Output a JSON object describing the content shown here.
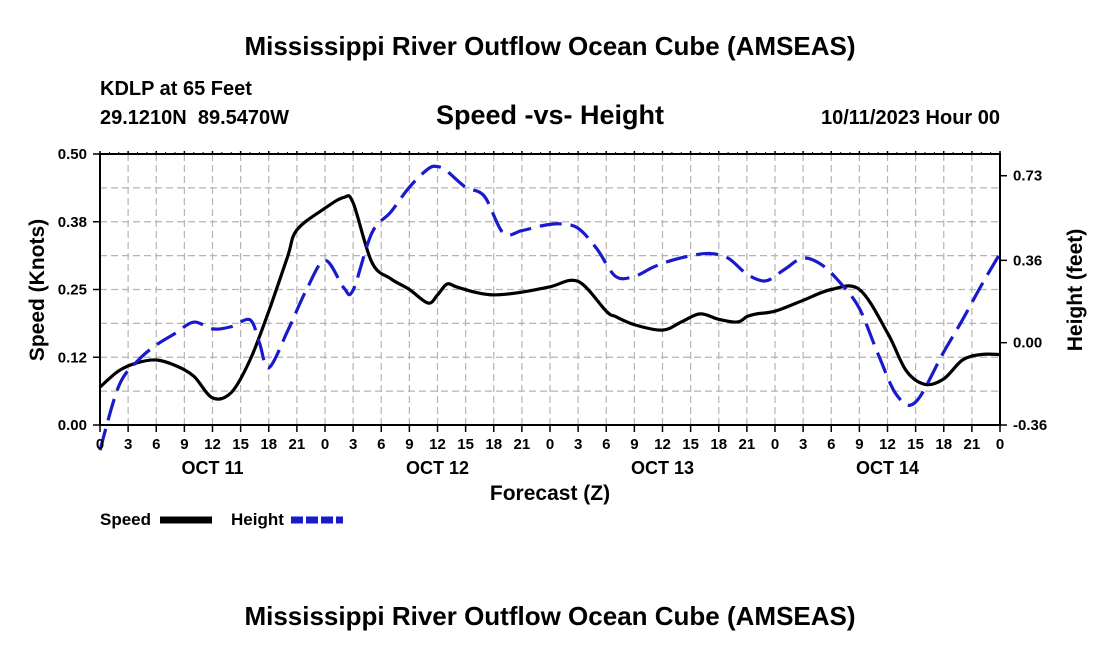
{
  "header": {
    "title": "Mississippi River Outflow Ocean Cube (AMSEAS)",
    "location_line": "KDLP at 65 Feet",
    "coordinates_line": "29.1210N  89.5470W",
    "subtitle": "Speed -vs- Height",
    "run_time": "10/11/2023 Hour 00",
    "footer_title": "Mississippi River Outflow Ocean Cube (AMSEAS)"
  },
  "chart_data": {
    "type": "line",
    "title": "Speed -vs- Height",
    "xlabel": "Forecast (Z)",
    "ylabel_left": "Speed (Knots)",
    "ylabel_right": "Height (feet)",
    "x_unit": "forecast hour",
    "xlim": [
      0,
      96
    ],
    "x_ticks": [
      0,
      3,
      6,
      9,
      12,
      15,
      18,
      21,
      24,
      27,
      30,
      33,
      36,
      39,
      42,
      45,
      48,
      51,
      54,
      57,
      60,
      63,
      66,
      69,
      72,
      75,
      78,
      81,
      84,
      87,
      90,
      93,
      96
    ],
    "x_tick_labels": [
      "0",
      "3",
      "6",
      "9",
      "12",
      "15",
      "18",
      "21",
      "0",
      "3",
      "6",
      "9",
      "12",
      "15",
      "18",
      "21",
      "0",
      "3",
      "6",
      "9",
      "12",
      "15",
      "18",
      "21",
      "0",
      "3",
      "6",
      "9",
      "12",
      "15",
      "18",
      "21",
      "0"
    ],
    "day_labels": [
      {
        "label": "OCT 11",
        "hour": 12
      },
      {
        "label": "OCT 12",
        "hour": 36
      },
      {
        "label": "OCT 13",
        "hour": 60
      },
      {
        "label": "OCT 14",
        "hour": 84
      }
    ],
    "left_axis": {
      "ylim": [
        0.0,
        0.5
      ],
      "ticks": [
        0.0,
        0.125,
        0.25,
        0.375,
        0.5
      ],
      "tick_labels": [
        "0.00",
        "0.12",
        "0.25",
        "0.38",
        "0.50"
      ]
    },
    "right_axis": {
      "ylim": [
        -0.36,
        0.825
      ],
      "ticks": [
        -0.36,
        0.0,
        0.36,
        0.73
      ],
      "tick_labels": [
        "-0.36",
        "0.00",
        "0.36",
        "0.73"
      ]
    },
    "grid": true,
    "legend": {
      "position": "bottom-left",
      "entries": [
        "Speed",
        "Height"
      ]
    },
    "series": [
      {
        "name": "Speed",
        "axis": "left",
        "color": "#000000",
        "style": "solid",
        "x": [
          0,
          2,
          4,
          6,
          8,
          10,
          12,
          14,
          16,
          18,
          20,
          21,
          24,
          26,
          27,
          29,
          31,
          33,
          35,
          36,
          37,
          38,
          40,
          42,
          45,
          48,
          51,
          54,
          55,
          57,
          60,
          62,
          64,
          66,
          68,
          69,
          70,
          72,
          75,
          78,
          81,
          84,
          86,
          88,
          90,
          92,
          94,
          96
        ],
        "y": [
          0.07,
          0.1,
          0.115,
          0.12,
          0.11,
          0.09,
          0.05,
          0.06,
          0.12,
          0.21,
          0.31,
          0.36,
          0.4,
          0.42,
          0.41,
          0.3,
          0.27,
          0.25,
          0.225,
          0.24,
          0.26,
          0.255,
          0.245,
          0.24,
          0.245,
          0.255,
          0.265,
          0.21,
          0.2,
          0.185,
          0.175,
          0.19,
          0.205,
          0.195,
          0.19,
          0.2,
          0.205,
          0.21,
          0.23,
          0.25,
          0.25,
          0.17,
          0.1,
          0.075,
          0.085,
          0.12,
          0.13,
          0.13
        ]
      },
      {
        "name": "Height",
        "axis": "right",
        "color": "#1a1acc",
        "style": "dashed",
        "x": [
          0,
          2,
          4,
          6,
          8,
          10,
          12,
          14,
          16,
          17,
          18,
          20,
          22,
          24,
          26,
          27,
          29,
          31,
          33,
          35,
          36,
          37,
          39,
          41,
          43,
          45,
          47,
          49,
          51,
          53,
          55,
          57,
          59,
          61,
          63,
          65,
          67,
          69,
          71,
          73,
          75,
          77,
          79,
          81,
          83,
          85,
          87,
          90,
          92,
          94,
          96
        ],
        "y": [
          -0.47,
          -0.19,
          -0.08,
          -0.01,
          0.04,
          0.09,
          0.06,
          0.07,
          0.1,
          0.0,
          -0.11,
          0.05,
          0.23,
          0.36,
          0.24,
          0.23,
          0.48,
          0.57,
          0.68,
          0.76,
          0.77,
          0.75,
          0.68,
          0.64,
          0.48,
          0.49,
          0.51,
          0.52,
          0.5,
          0.41,
          0.29,
          0.29,
          0.33,
          0.36,
          0.38,
          0.39,
          0.37,
          0.3,
          0.27,
          0.32,
          0.37,
          0.34,
          0.26,
          0.15,
          -0.05,
          -0.23,
          -0.26,
          -0.04,
          0.1,
          0.25,
          0.39
        ]
      }
    ]
  }
}
